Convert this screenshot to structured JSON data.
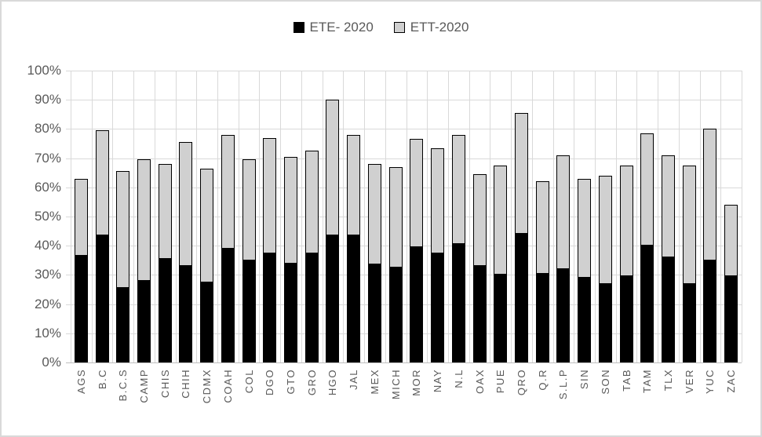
{
  "chart_data": {
    "type": "bar",
    "stacked": true,
    "categories": [
      "AGS",
      "B.C",
      "B.C.S",
      "CAMP",
      "CHIS",
      "CHIH",
      "CDMX",
      "COAH",
      "COL",
      "DGO",
      "GTO",
      "GRO",
      "HGO",
      "JAL",
      "MEX",
      "MICH",
      "MOR",
      "NAY",
      "N.L",
      "OAX",
      "PUE",
      "QRO",
      "Q.R",
      "S.L.P",
      "SIN",
      "SON",
      "TAB",
      "TAM",
      "TLX",
      "VER",
      "YUC",
      "ZAC"
    ],
    "series": [
      {
        "name": "ETE- 2020",
        "color": "#000000",
        "values": [
          36.5,
          43.5,
          25.5,
          28,
          35.5,
          33,
          27.5,
          39,
          35,
          37.5,
          34,
          37.5,
          43.5,
          43.5,
          33.5,
          32.5,
          39.5,
          37.5,
          40.5,
          33,
          30,
          44,
          30.5,
          32,
          29,
          27,
          29.5,
          40,
          36,
          27,
          35,
          29.5
        ]
      },
      {
        "name": "ETT-2020",
        "color": "#d0d0d0",
        "values": [
          26.5,
          36,
          40,
          41.5,
          32.5,
          42.5,
          39,
          39,
          34.5,
          39.5,
          36.5,
          35,
          46.5,
          34.5,
          34.5,
          34.5,
          37,
          36,
          37.5,
          31.5,
          37.5,
          41.5,
          31.5,
          39,
          34,
          37,
          38,
          38.5,
          35,
          40.5,
          45,
          24.5
        ]
      }
    ],
    "yticks": [
      "100%",
      "90%",
      "80%",
      "70%",
      "60%",
      "50%",
      "40%",
      "30%",
      "20%",
      "10%",
      "0%"
    ],
    "ylim": [
      0,
      100
    ],
    "ytick_step": 10,
    "grid": "both",
    "legend_position": "top-center",
    "title": "",
    "xlabel": "",
    "ylabel": ""
  },
  "colors": {
    "bar_black": "#000000",
    "bar_gray": "#d0d0d0",
    "bar_outline": "#000000",
    "gridline": "#d9d9d9",
    "axis_line": "#bfbfbf",
    "axis_text": "#595959",
    "frame_border": "#d9d9d9"
  }
}
